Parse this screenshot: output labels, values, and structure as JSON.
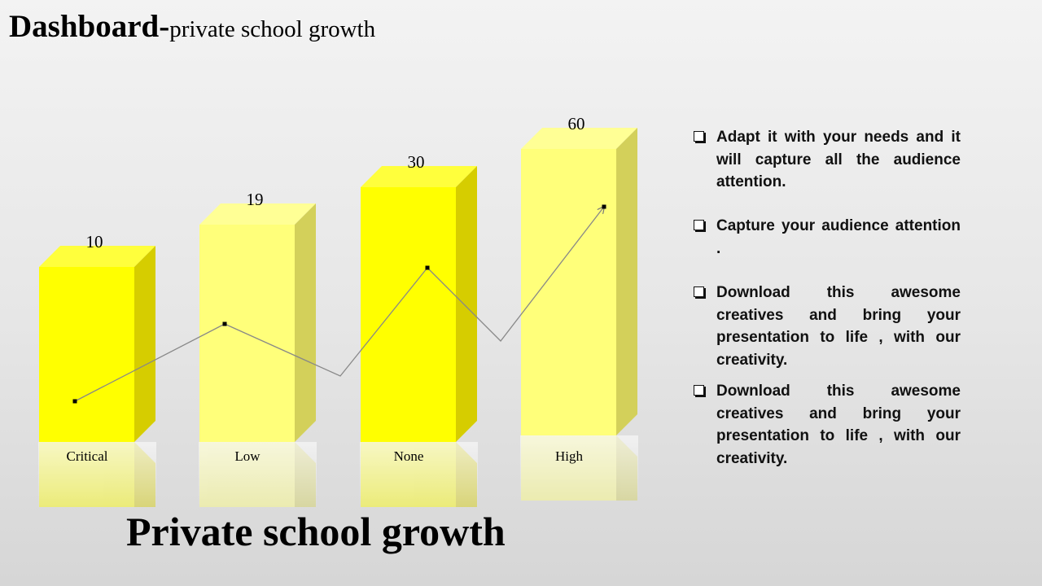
{
  "header": {
    "title_main": "Dashboard-",
    "title_sub": "private school  growth"
  },
  "chart_data": {
    "type": "bar",
    "categories": [
      "Critical",
      "Low",
      "None",
      "High"
    ],
    "values": [
      10,
      19,
      30,
      60
    ],
    "data_labels": [
      "10",
      "19",
      "30",
      "60"
    ],
    "title": "Private school growth",
    "xlabel": "",
    "ylabel": "",
    "grid": false,
    "legend": "none",
    "colors": [
      "#ffff00",
      "#ffff7a",
      "#ffff00",
      "#ffff7a"
    ],
    "side_colors": [
      "#d6cd00",
      "#d3d05a",
      "#d6cd00",
      "#d3d05a"
    ],
    "top_colors": [
      "#ffff3c",
      "#ffff95",
      "#ffff3c",
      "#ffff95"
    ],
    "line_color": "#888888",
    "marker_color": "#000000"
  },
  "bullets": [
    "Adapt it with your needs and it will capture all the audience attention.",
    "Capture your audience attention .",
    "Download this awesome creatives and bring your presentation to life , with our creativity.",
    "Download this awesome creatives and bring your presentation to life , with our creativity."
  ]
}
